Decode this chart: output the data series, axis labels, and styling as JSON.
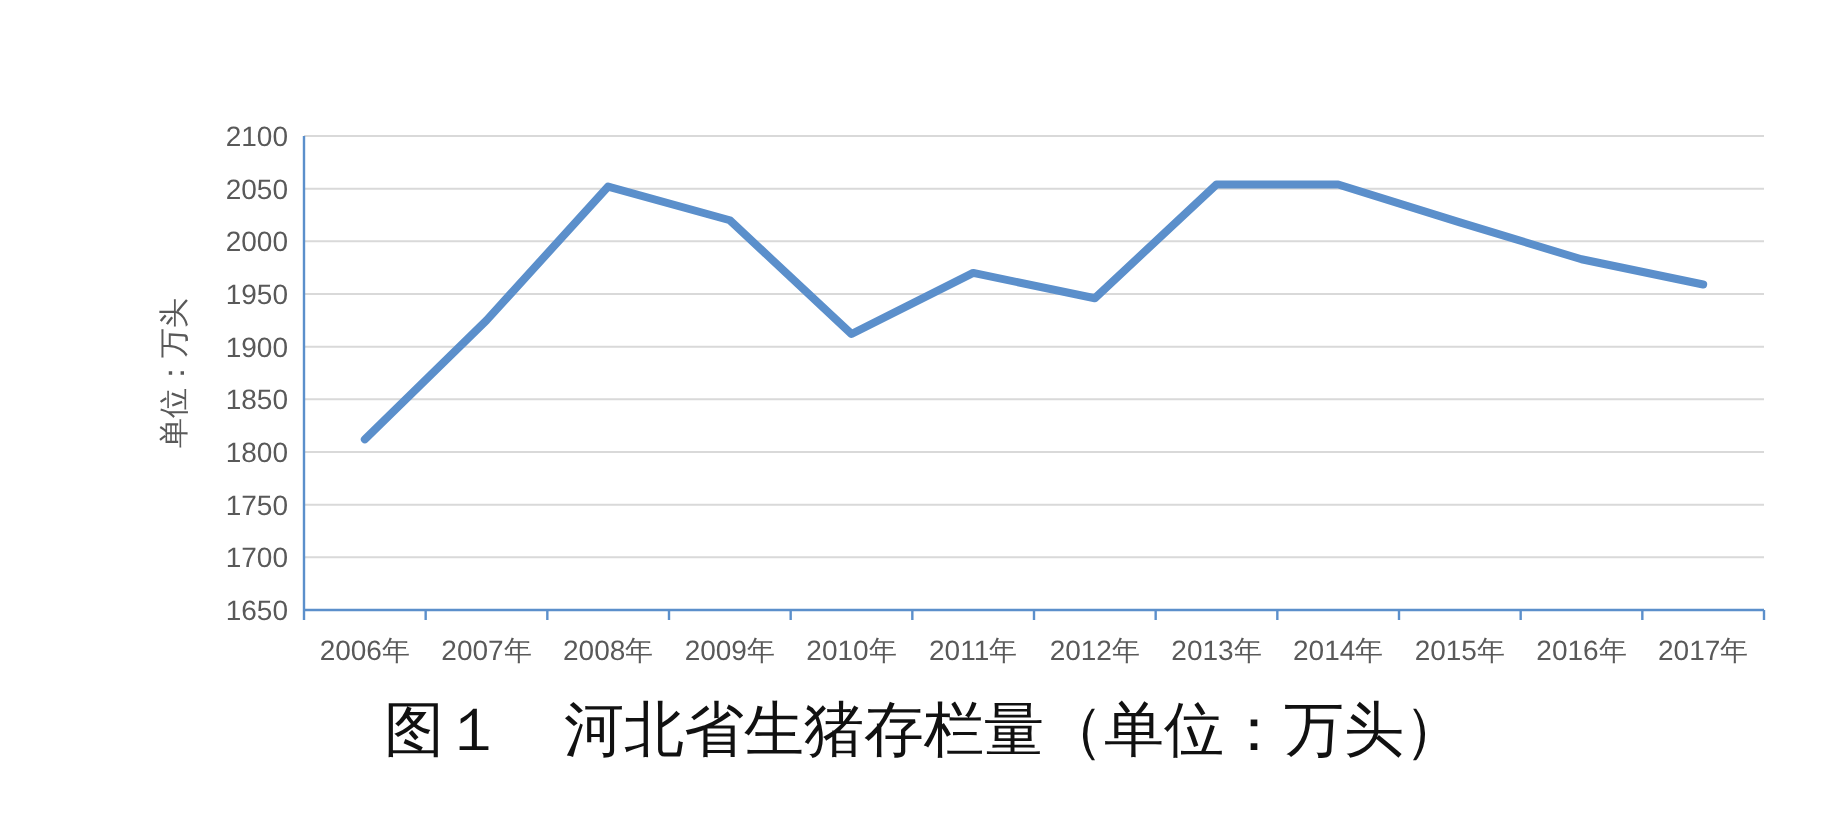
{
  "chart_data": {
    "type": "line",
    "title": "图１　河北省生猪存栏量（单位：万头）",
    "ylabel": "单位：万头",
    "categories": [
      "2006年",
      "2007年",
      "2008年",
      "2009年",
      "2010年",
      "2011年",
      "2012年",
      "2013年",
      "2014年",
      "2015年",
      "2016年",
      "2017年"
    ],
    "series": [
      {
        "color": "#5b8fcb",
        "values": [
          1812,
          1925,
          2052,
          2020,
          1912,
          1970,
          1946,
          2054,
          2054,
          2018,
          1983,
          1959
        ]
      }
    ],
    "ylim": [
      1650,
      2100
    ],
    "yticks": [
      1650,
      1700,
      1750,
      1800,
      1850,
      1900,
      1950,
      2000,
      2050,
      2100
    ],
    "grid": "y",
    "marker": "none",
    "line_style": "solid"
  }
}
